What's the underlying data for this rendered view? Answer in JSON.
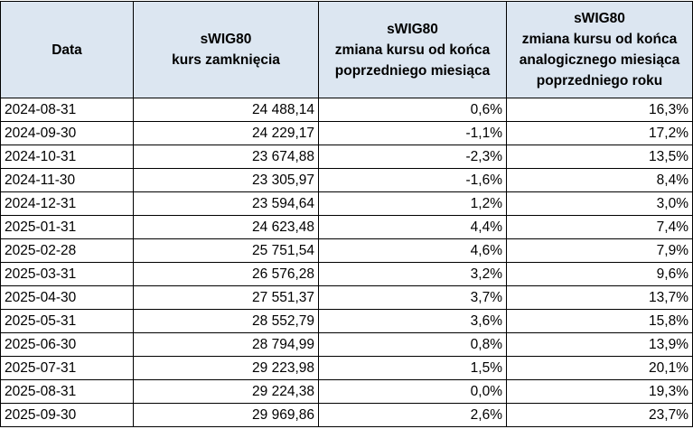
{
  "table": {
    "header": [
      [
        "Data"
      ],
      [
        "sWIG80",
        "kurs zamknięcia"
      ],
      [
        "sWIG80",
        "zmiana kursu od końca",
        "poprzedniego miesiąca"
      ],
      [
        "sWIG80",
        "zmiana kursu  od końca",
        "analogicznego miesiąca",
        "poprzedniego roku"
      ]
    ],
    "rows": [
      [
        "2024-08-31",
        "24 488,14",
        "0,6%",
        "16,3%"
      ],
      [
        "2024-09-30",
        "24 229,17",
        "-1,1%",
        "17,2%"
      ],
      [
        "2024-10-31",
        "23 674,88",
        "-2,3%",
        "13,5%"
      ],
      [
        "2024-11-30",
        "23 305,97",
        "-1,6%",
        "8,4%"
      ],
      [
        "2024-12-31",
        "23 594,64",
        "1,2%",
        "3,0%"
      ],
      [
        "2025-01-31",
        "24 623,48",
        "4,4%",
        "7,4%"
      ],
      [
        "2025-02-28",
        "25 751,54",
        "4,6%",
        "7,9%"
      ],
      [
        "2025-03-31",
        "26 576,28",
        "3,2%",
        "9,6%"
      ],
      [
        "2025-04-30",
        "27 551,37",
        "3,7%",
        "13,7%"
      ],
      [
        "2025-05-31",
        "28 552,79",
        "3,6%",
        "15,8%"
      ],
      [
        "2025-06-30",
        "28 794,99",
        "0,8%",
        "13,9%"
      ],
      [
        "2025-07-31",
        "29 223,98",
        "1,5%",
        "20,1%"
      ],
      [
        "2025-08-31",
        "29 224,38",
        "0,0%",
        "19,3%"
      ],
      [
        "2025-09-30",
        "29 969,86",
        "2,6%",
        "23,7%"
      ]
    ]
  }
}
